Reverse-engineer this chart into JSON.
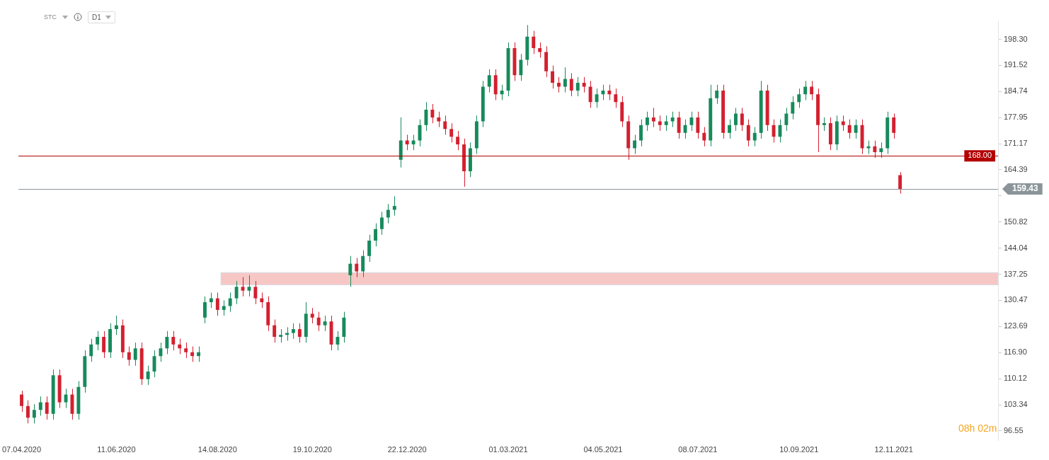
{
  "chart_data": {
    "type": "candlestick",
    "categories": [
      "07.04.2020",
      null,
      null,
      null,
      null,
      null,
      null,
      null,
      null,
      null,
      null,
      null,
      null,
      null,
      null,
      "11.06.2020",
      null,
      null,
      null,
      null,
      null,
      null,
      null,
      null,
      null,
      null,
      null,
      null,
      null,
      null,
      null,
      "14.08.2020",
      null,
      null,
      null,
      null,
      null,
      null,
      null,
      null,
      null,
      null,
      null,
      null,
      null,
      null,
      "19.10.2020",
      null,
      null,
      null,
      null,
      null,
      null,
      null,
      null,
      null,
      null,
      null,
      null,
      null,
      null,
      "22.12.2020",
      null,
      null,
      null,
      null,
      null,
      null,
      null,
      null,
      null,
      null,
      null,
      null,
      null,
      null,
      null,
      "01.03.2021",
      null,
      null,
      null,
      null,
      null,
      null,
      null,
      null,
      null,
      null,
      null,
      null,
      null,
      null,
      "04.05.2021",
      null,
      null,
      null,
      null,
      null,
      null,
      null,
      null,
      null,
      null,
      null,
      null,
      null,
      null,
      "08.07.2021",
      null,
      null,
      null,
      null,
      null,
      null,
      null,
      null,
      null,
      null,
      null,
      null,
      null,
      null,
      null,
      "10.09.2021",
      null,
      null,
      null,
      null,
      null,
      null,
      null,
      null,
      null,
      null,
      null,
      null,
      null,
      null,
      "12.11.2021",
      null,
      null,
      null,
      null,
      null,
      null,
      null,
      null,
      null,
      null,
      null,
      null,
      null,
      null,
      null,
      null
    ],
    "ohlc": [
      [
        106,
        107,
        101.5,
        103
      ],
      [
        103,
        104.5,
        98.5,
        100
      ],
      [
        100,
        103.5,
        98.5,
        102
      ],
      [
        102,
        105.5,
        100.5,
        104
      ],
      [
        104,
        105.5,
        99.5,
        101
      ],
      [
        101,
        112.5,
        99.5,
        111
      ],
      [
        111,
        112.5,
        102.5,
        104
      ],
      [
        104,
        107.5,
        102.5,
        106
      ],
      [
        106,
        107.5,
        99.5,
        101
      ],
      [
        101,
        109.5,
        99.5,
        108
      ],
      [
        108,
        117.5,
        106.5,
        116
      ],
      [
        116,
        120.5,
        114.5,
        119
      ],
      [
        119,
        122.5,
        117.5,
        121
      ],
      [
        121,
        122.5,
        115.5,
        117
      ],
      [
        117,
        124.5,
        115.5,
        123
      ],
      [
        123,
        126.5,
        121.5,
        124
      ],
      [
        124,
        125.5,
        115.5,
        117
      ],
      [
        117,
        118.5,
        113.5,
        115
      ],
      [
        115,
        119.5,
        113.5,
        118
      ],
      [
        118,
        119.5,
        108.5,
        110
      ],
      [
        110,
        113.5,
        108.5,
        112
      ],
      [
        112,
        117.5,
        110.5,
        116
      ],
      [
        116,
        119.5,
        114.5,
        118
      ],
      [
        118,
        122.5,
        116.5,
        121
      ],
      [
        121,
        122.5,
        117.5,
        119
      ],
      [
        119,
        120.5,
        116.5,
        118
      ],
      [
        118,
        119.5,
        115.5,
        117
      ],
      [
        117,
        118.5,
        114.5,
        116
      ],
      [
        116,
        118.5,
        114.5,
        117
      ],
      [
        126,
        131.5,
        124.5,
        130
      ],
      [
        130,
        132.5,
        128.5,
        131
      ],
      [
        131,
        132.5,
        126.5,
        128
      ],
      [
        128,
        130.5,
        126.5,
        129
      ],
      [
        129,
        132.5,
        127.5,
        131
      ],
      [
        131,
        135.5,
        129.5,
        134
      ],
      [
        134,
        136.5,
        131.5,
        133
      ],
      [
        133,
        137,
        131.5,
        134
      ],
      [
        134,
        135.5,
        129.5,
        131
      ],
      [
        131,
        132.5,
        128.5,
        130
      ],
      [
        130,
        131.5,
        122.5,
        124
      ],
      [
        124,
        125.5,
        119.5,
        121
      ],
      [
        121,
        123,
        119.5,
        121.5
      ],
      [
        121.5,
        123.5,
        120,
        122
      ],
      [
        122,
        124.5,
        120.5,
        123
      ],
      [
        123,
        124.5,
        119.5,
        121
      ],
      [
        121,
        130,
        119.5,
        127
      ],
      [
        127,
        128.5,
        124.5,
        126
      ],
      [
        126,
        127.5,
        122.5,
        124
      ],
      [
        124,
        126.5,
        122.5,
        125
      ],
      [
        125,
        126.5,
        117.5,
        119
      ],
      [
        119,
        122.5,
        117.5,
        121
      ],
      [
        121,
        127.5,
        119.5,
        126
      ],
      [
        137,
        142,
        134,
        140
      ],
      [
        140,
        141.5,
        136.5,
        138
      ],
      [
        138,
        143.5,
        136.5,
        142
      ],
      [
        142,
        147.5,
        140.5,
        146
      ],
      [
        146,
        150.5,
        144.5,
        149
      ],
      [
        149,
        153.5,
        147.5,
        152
      ],
      [
        152,
        155.5,
        150.5,
        154
      ],
      [
        154,
        157.5,
        152.5,
        155
      ],
      [
        167,
        178,
        165,
        172
      ],
      [
        172,
        173.5,
        169.5,
        171
      ],
      [
        171,
        173.5,
        169.5,
        172
      ],
      [
        172,
        177.5,
        170.5,
        176
      ],
      [
        176,
        182,
        174.5,
        180
      ],
      [
        180,
        181.5,
        176.5,
        178
      ],
      [
        178,
        179.5,
        175.5,
        177
      ],
      [
        177,
        178.5,
        173.5,
        175
      ],
      [
        175,
        176.5,
        171.5,
        173
      ],
      [
        173,
        174.5,
        169.5,
        171
      ],
      [
        171,
        172.5,
        160,
        164
      ],
      [
        164,
        171.5,
        162.5,
        170
      ],
      [
        170,
        178.5,
        168.5,
        177
      ],
      [
        177,
        187.5,
        175.5,
        186
      ],
      [
        186,
        190.5,
        184.5,
        189
      ],
      [
        189,
        190.5,
        182.5,
        184
      ],
      [
        184,
        186.5,
        182.5,
        185
      ],
      [
        185,
        197.5,
        183.5,
        196
      ],
      [
        196,
        197.5,
        187.5,
        189
      ],
      [
        189,
        194.5,
        187.5,
        193
      ],
      [
        193,
        202,
        191.5,
        199
      ],
      [
        199,
        200.5,
        194.5,
        196
      ],
      [
        196,
        197.5,
        193.5,
        195
      ],
      [
        195,
        196.5,
        188.5,
        190
      ],
      [
        190,
        191.5,
        185.5,
        187
      ],
      [
        187,
        188.5,
        184.5,
        186
      ],
      [
        186,
        191,
        184.5,
        188
      ],
      [
        188,
        189.5,
        183.5,
        185
      ],
      [
        185,
        188.5,
        183.5,
        187
      ],
      [
        187,
        188.5,
        184.5,
        186
      ],
      [
        186,
        187.5,
        180.5,
        182
      ],
      [
        182,
        185.5,
        180.5,
        184
      ],
      [
        184,
        186.5,
        182.5,
        185
      ],
      [
        185,
        186.5,
        182.5,
        184
      ],
      [
        184,
        185.5,
        180.5,
        182
      ],
      [
        182,
        183.5,
        175.5,
        177
      ],
      [
        177,
        178.5,
        167,
        170
      ],
      [
        170,
        173.5,
        168.5,
        172
      ],
      [
        172,
        177.5,
        170.5,
        176
      ],
      [
        176,
        179.5,
        174.5,
        178
      ],
      [
        178,
        180.5,
        175.5,
        177
      ],
      [
        177,
        178.5,
        174.5,
        176
      ],
      [
        176,
        178.5,
        174.5,
        177
      ],
      [
        177,
        179.5,
        175.5,
        178
      ],
      [
        178,
        179.5,
        172.5,
        174
      ],
      [
        174,
        177.5,
        172.5,
        176
      ],
      [
        176,
        179.5,
        174.5,
        178
      ],
      [
        178,
        179.5,
        172.5,
        174
      ],
      [
        174,
        175.5,
        170.5,
        172
      ],
      [
        172,
        186.5,
        170.5,
        183
      ],
      [
        183,
        186.5,
        181.5,
        185
      ],
      [
        185,
        186.5,
        172.5,
        174
      ],
      [
        174,
        177.5,
        172.5,
        176
      ],
      [
        176,
        180.5,
        174.5,
        179
      ],
      [
        179,
        180.5,
        174.5,
        176
      ],
      [
        176,
        177.5,
        170.5,
        172
      ],
      [
        172,
        175.5,
        170.5,
        174
      ],
      [
        174,
        187.5,
        172.5,
        185
      ],
      [
        185,
        186.5,
        174.5,
        176
      ],
      [
        176,
        177.5,
        171.5,
        173
      ],
      [
        173,
        177.5,
        171.5,
        176
      ],
      [
        176,
        180.5,
        174.5,
        179
      ],
      [
        179,
        183.5,
        177.5,
        182
      ],
      [
        182,
        185.5,
        180.5,
        184
      ],
      [
        184,
        187.5,
        182.5,
        186
      ],
      [
        186,
        187.5,
        182.5,
        184
      ],
      [
        184,
        185.5,
        169,
        176
      ],
      [
        176,
        178,
        174.5,
        176.5
      ],
      [
        176.5,
        178,
        169.5,
        171
      ],
      [
        171,
        178.5,
        169.5,
        177
      ],
      [
        177,
        178.5,
        174.5,
        176
      ],
      [
        176,
        177.5,
        172.5,
        174
      ],
      [
        174,
        177.5,
        172.5,
        176
      ],
      [
        176,
        177.5,
        168.5,
        170
      ],
      [
        170,
        172,
        168.5,
        170.5
      ],
      [
        170.5,
        172,
        167.5,
        169
      ],
      [
        169,
        171.5,
        167.5,
        170
      ],
      [
        170,
        179.5,
        168.5,
        178
      ],
      [
        178,
        179,
        172.5,
        174
      ],
      [
        163,
        163.8,
        158.2,
        159.43
      ],
      null,
      null,
      null,
      null,
      null,
      null,
      null,
      null,
      null,
      null,
      null,
      null,
      null,
      null,
      null
    ],
    "colors": [
      "#d3202f",
      "#d3202f",
      "#178a5c",
      "#178a5c",
      "#d3202f",
      "#178a5c",
      "#d3202f",
      "#178a5c",
      "#d3202f",
      "#178a5c",
      "#178a5c",
      "#178a5c",
      "#178a5c",
      "#d3202f",
      "#178a5c",
      "#178a5c",
      "#d3202f",
      "#d3202f",
      "#178a5c",
      "#d3202f",
      "#178a5c",
      "#178a5c",
      "#178a5c",
      "#178a5c",
      "#d3202f",
      "#d3202f",
      "#d3202f",
      "#d3202f",
      "#178a5c",
      "#178a5c",
      "#178a5c",
      "#d3202f",
      "#178a5c",
      "#178a5c",
      "#178a5c",
      "#d3202f",
      "#178a5c",
      "#d3202f",
      "#d3202f",
      "#d3202f",
      "#d3202f",
      "#178a5c",
      "#178a5c",
      "#178a5c",
      "#d3202f",
      "#178a5c",
      "#d3202f",
      "#d3202f",
      "#178a5c",
      "#d3202f",
      "#178a5c",
      "#178a5c",
      "#178a5c",
      "#d3202f",
      "#178a5c",
      "#178a5c",
      "#178a5c",
      "#178a5c",
      "#178a5c",
      "#178a5c",
      "#178a5c",
      "#d3202f",
      "#178a5c",
      "#178a5c",
      "#178a5c",
      "#d3202f",
      "#d3202f",
      "#d3202f",
      "#d3202f",
      "#d3202f",
      "#d3202f",
      "#178a5c",
      "#178a5c",
      "#178a5c",
      "#178a5c",
      "#d3202f",
      "#178a5c",
      "#178a5c",
      "#d3202f",
      "#178a5c",
      "#178a5c",
      "#d3202f",
      "#d3202f",
      "#d3202f",
      "#d3202f",
      "#d3202f",
      "#178a5c",
      "#d3202f",
      "#178a5c",
      "#d3202f",
      "#d3202f",
      "#178a5c",
      "#178a5c",
      "#d3202f",
      "#d3202f",
      "#d3202f",
      "#d3202f",
      "#178a5c",
      "#178a5c",
      "#178a5c",
      "#d3202f",
      "#d3202f",
      "#178a5c",
      "#178a5c",
      "#d3202f",
      "#178a5c",
      "#178a5c",
      "#d3202f",
      "#d3202f",
      "#178a5c",
      "#178a5c",
      "#d3202f",
      "#178a5c",
      "#178a5c",
      "#d3202f",
      "#d3202f",
      "#178a5c",
      "#178a5c",
      "#d3202f",
      "#d3202f",
      "#178a5c",
      "#178a5c",
      "#178a5c",
      "#178a5c",
      "#178a5c",
      "#d3202f",
      "#d3202f",
      "#178a5c",
      "#d3202f",
      "#178a5c",
      "#d3202f",
      "#d3202f",
      "#178a5c",
      "#d3202f",
      "#178a5c",
      "#d3202f",
      "#178a5c",
      "#178a5c",
      "#d3202f",
      "#d3202f",
      null,
      null,
      null,
      null,
      null,
      null,
      null,
      null,
      null,
      null,
      null,
      null,
      null,
      null,
      null
    ],
    "ylim": [
      94,
      203
    ],
    "yticks": [
      96.55,
      103.34,
      110.12,
      {
        "value": 116.9,
        "label": "116.90"
      },
      123.69,
      130.47,
      137.25,
      144.04,
      150.82,
      {
        "value": 157.6,
        "label": null
      },
      164.39,
      171.17,
      177.95,
      184.74,
      191.52,
      {
        "value": 198.3,
        "label": "198.30"
      }
    ],
    "ref_lines": [
      {
        "axis": "y",
        "value": 168,
        "label": "168.00",
        "color": "#b30000"
      },
      {
        "axis": "y",
        "value": 159.43,
        "label": "159.43",
        "color": "#8a9499"
      }
    ],
    "bands": [
      {
        "axis": "y",
        "from": 134.5,
        "to": 137.7,
        "color": "#f6c7c5"
      }
    ],
    "annotations": [
      "STC",
      "D1",
      "08h 02m"
    ],
    "grid": false,
    "legend": false
  }
}
